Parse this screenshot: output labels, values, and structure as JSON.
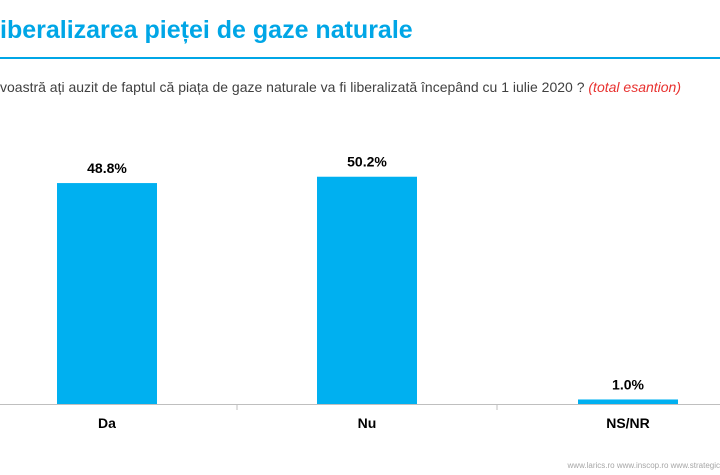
{
  "title": "iberalizarea pieței de gaze naturale",
  "question": "voastră ați auzit de faptul că piața de gaze naturale va fi liberalizată începând cu 1 iulie 2020 ?",
  "question_note": "(total esantion)",
  "footer": "www.larics.ro  www.inscop.ro  www.strategic",
  "colors": {
    "title": "#00A6E6",
    "rule": "#00A6E6",
    "bar": "#00B0F0",
    "note": "#E8312F",
    "axis": "#BFBFBF",
    "label": "#000000"
  },
  "chart_data": {
    "type": "bar",
    "categories": [
      "Da",
      "Nu",
      "NS/NR"
    ],
    "values": [
      48.8,
      50.2,
      1.0
    ],
    "data_labels": [
      "48.8%",
      "50.2%",
      "1.0%"
    ],
    "title": "",
    "xlabel": "",
    "ylabel": "",
    "ylim": [
      0,
      55
    ],
    "grid": false,
    "legend": "none"
  }
}
